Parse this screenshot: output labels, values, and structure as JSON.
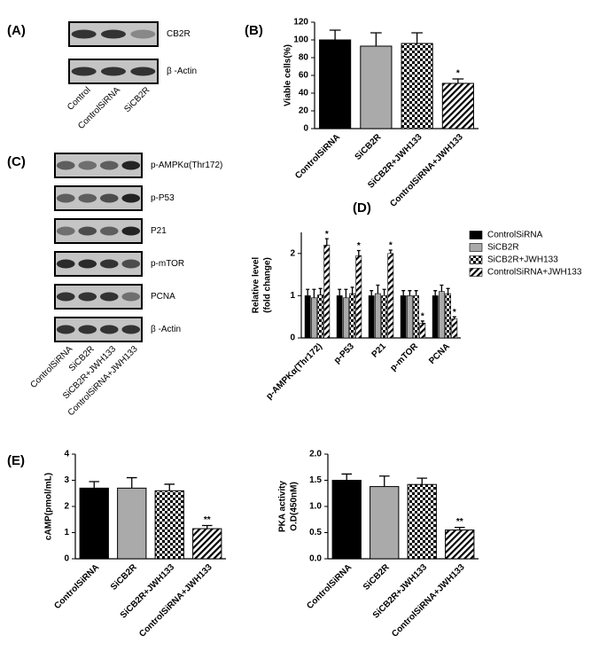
{
  "panel_labels": [
    "(A)",
    "(B)",
    "(C)",
    "(D)",
    "(E)"
  ],
  "blot_a": {
    "bands": [
      "CB2R",
      "β -Actin"
    ],
    "lanes": [
      "Control",
      "ControlSiRNA",
      "SiCB2R"
    ]
  },
  "blot_c": {
    "bands": [
      "p-AMPKα(Thr172)",
      "p-P53",
      "P21",
      "p-mTOR",
      "PCNA",
      "β -Actin"
    ],
    "lanes": [
      "ControlSiRNA",
      "SiCB2R",
      "SiCB2R+JWH133",
      "ControlSiRNA+JWH133"
    ]
  },
  "chart_data": [
    {
      "type": "bar",
      "ylabel": [
        "Viable cells(%)"
      ],
      "categories": [
        "ControlSiRNA",
        "SiCB2R",
        "SiCB2R+JWH133",
        "ControlSiRNA+JWH133"
      ],
      "values": [
        100,
        93,
        96,
        51
      ],
      "errors": [
        11,
        15,
        12,
        5
      ],
      "colors": [
        "#000000",
        "#aaaaaa",
        "#000000",
        "#000000"
      ],
      "patterns": [
        "solid",
        "solid",
        "checker",
        "hatch"
      ],
      "annotations": [
        {
          "index": 3,
          "text": "*"
        }
      ],
      "ylim": [
        0,
        120
      ],
      "yticks": [
        0,
        20,
        40,
        60,
        80,
        100,
        120
      ]
    },
    {
      "type": "grouped_bar",
      "ylabel": [
        "Relative level",
        "(fold change)"
      ],
      "categories": [
        "p-AMPKα(Thr172)",
        "p-P53",
        "P21",
        "p-mTOR",
        "PCNA"
      ],
      "series": [
        {
          "name": "ControlSiRNA",
          "color": "#000000",
          "pattern": "solid",
          "values": [
            1.0,
            1.0,
            1.0,
            1.0,
            1.0
          ],
          "errors": [
            0.15,
            0.15,
            0.12,
            0.12,
            0.12
          ]
        },
        {
          "name": "SiCB2R",
          "color": "#aaaaaa",
          "pattern": "solid",
          "values": [
            0.95,
            0.95,
            1.05,
            1.0,
            1.1
          ],
          "errors": [
            0.2,
            0.2,
            0.2,
            0.12,
            0.15
          ]
        },
        {
          "name": "SiCB2R+JWH133",
          "color": "#000000",
          "pattern": "checker",
          "values": [
            1.02,
            1.05,
            1.0,
            1.0,
            1.05
          ],
          "errors": [
            0.15,
            0.15,
            0.15,
            0.12,
            0.12
          ]
        },
        {
          "name": "ControlSiRNA+JWH133",
          "color": "#000000",
          "pattern": "hatch",
          "values": [
            2.2,
            1.95,
            2.0,
            0.35,
            0.45
          ],
          "errors": [
            0.15,
            0.12,
            0.08,
            0.05,
            0.05
          ]
        }
      ],
      "annotations": [
        {
          "series": 3,
          "index": 0,
          "text": "*"
        },
        {
          "series": 3,
          "index": 1,
          "text": "*"
        },
        {
          "series": 3,
          "index": 2,
          "text": "*"
        },
        {
          "series": 3,
          "index": 3,
          "text": "*"
        },
        {
          "series": 3,
          "index": 4,
          "text": "*"
        }
      ],
      "ylim": [
        0,
        2.5
      ],
      "yticks": [
        0,
        1,
        2
      ]
    },
    {
      "type": "bar",
      "ylabel": [
        "cAMP(pmol/mL)"
      ],
      "categories": [
        "ControlSiRNA",
        "SiCB2R",
        "SiCB2R+JWH133",
        "ControlSiRNA+JWH133"
      ],
      "values": [
        2.7,
        2.7,
        2.6,
        1.15
      ],
      "errors": [
        0.25,
        0.4,
        0.25,
        0.12
      ],
      "colors": [
        "#000000",
        "#aaaaaa",
        "#000000",
        "#000000"
      ],
      "patterns": [
        "solid",
        "solid",
        "checker",
        "hatch"
      ],
      "annotations": [
        {
          "index": 3,
          "text": "**"
        }
      ],
      "ylim": [
        0,
        4
      ],
      "yticks": [
        0,
        1,
        2,
        3,
        4
      ]
    },
    {
      "type": "bar",
      "ylabel": [
        "PKA activity",
        "O.D(450nM)"
      ],
      "categories": [
        "ControlSiRNA",
        "SiCB2R",
        "SiCB2R+JWH133",
        "ControlSiRNA+JWH133"
      ],
      "values": [
        1.5,
        1.38,
        1.42,
        0.55
      ],
      "errors": [
        0.12,
        0.2,
        0.12,
        0.05
      ],
      "colors": [
        "#000000",
        "#aaaaaa",
        "#000000",
        "#000000"
      ],
      "patterns": [
        "solid",
        "solid",
        "checker",
        "hatch"
      ],
      "annotations": [
        {
          "index": 3,
          "text": "**"
        }
      ],
      "ylim": [
        0,
        2.0
      ],
      "yticks": [
        {
          "value": 0,
          "label": "0.0"
        },
        0.5,
        {
          "value": 1,
          "label": "1.0"
        },
        1.5,
        {
          "value": 2,
          "label": "2.0"
        }
      ]
    }
  ]
}
